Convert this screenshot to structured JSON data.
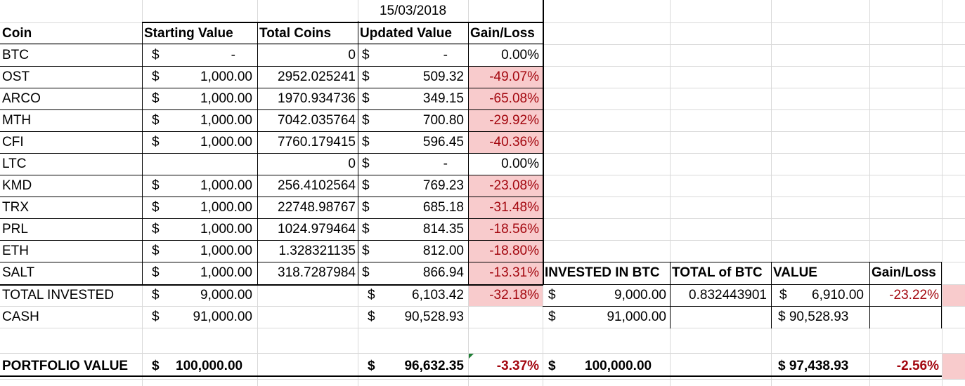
{
  "date": "15/03/2018",
  "headers": {
    "coin": "Coin",
    "starting_value": "Starting Value",
    "total_coins": "Total Coins",
    "updated_value": "Updated Value",
    "gain_loss": "Gain/Loss"
  },
  "currency_symbol": "$",
  "coins": [
    {
      "coin": "BTC",
      "starting": "-",
      "coins": "0",
      "updated": "-",
      "gain": "0.00%",
      "negative": false
    },
    {
      "coin": "OST",
      "starting": "1,000.00",
      "coins": "2952.025241",
      "updated": "509.32",
      "gain": "-49.07%",
      "negative": true
    },
    {
      "coin": "ARCO",
      "starting": "1,000.00",
      "coins": "1970.934736",
      "updated": "349.15",
      "gain": "-65.08%",
      "negative": true
    },
    {
      "coin": "MTH",
      "starting": "1,000.00",
      "coins": "7042.035764",
      "updated": "700.80",
      "gain": "-29.92%",
      "negative": true
    },
    {
      "coin": "CFI",
      "starting": "1,000.00",
      "coins": "7760.179415",
      "updated": "596.45",
      "gain": "-40.36%",
      "negative": true
    },
    {
      "coin": "LTC",
      "starting": "",
      "coins": "0",
      "updated": "-",
      "gain": "0.00%",
      "negative": false
    },
    {
      "coin": "KMD",
      "starting": "1,000.00",
      "coins": "256.4102564",
      "updated": "769.23",
      "gain": "-23.08%",
      "negative": true
    },
    {
      "coin": "TRX",
      "starting": "1,000.00",
      "coins": "22748.98767",
      "updated": "685.18",
      "gain": "-31.48%",
      "negative": true
    },
    {
      "coin": "PRL",
      "starting": "1,000.00",
      "coins": "1024.979464",
      "updated": "814.35",
      "gain": "-18.56%",
      "negative": true
    },
    {
      "coin": "ETH",
      "starting": "1,000.00",
      "coins": "1.328321135",
      "updated": "812.00",
      "gain": "-18.80%",
      "negative": true
    },
    {
      "coin": "SALT",
      "starting": "1,000.00",
      "coins": "318.7287984",
      "updated": "866.94",
      "gain": "-13.31%",
      "negative": true
    }
  ],
  "total_invested": {
    "label": "TOTAL INVESTED",
    "starting": "9,000.00",
    "updated": "6,103.42",
    "gain": "-32.18%"
  },
  "cash": {
    "label": "CASH",
    "starting": "91,000.00",
    "updated": "90,528.93"
  },
  "portfolio": {
    "label": "PORTFOLIO VALUE",
    "starting": "100,000.00",
    "updated": "96,632.35",
    "gain": "-3.37%"
  },
  "btc_table": {
    "headers": {
      "invested": "INVESTED IN BTC",
      "total_btc": "TOTAL of BTC",
      "value": "VALUE",
      "gain_loss": "Gain/Loss"
    },
    "total_invested": {
      "invested": "9,000.00",
      "total_btc": "0.832443901",
      "value": "6,910.00",
      "gain": "-23.22%"
    },
    "cash": {
      "invested": "91,000.00",
      "value": "$ 90,528.93"
    },
    "portfolio": {
      "invested": "100,000.00",
      "value": "$ 97,438.93",
      "gain": "-2.56%"
    }
  },
  "colors": {
    "loss_fill": "#f8cbcc",
    "loss_text": "#a3070f",
    "grid": "#d9d9d9"
  }
}
